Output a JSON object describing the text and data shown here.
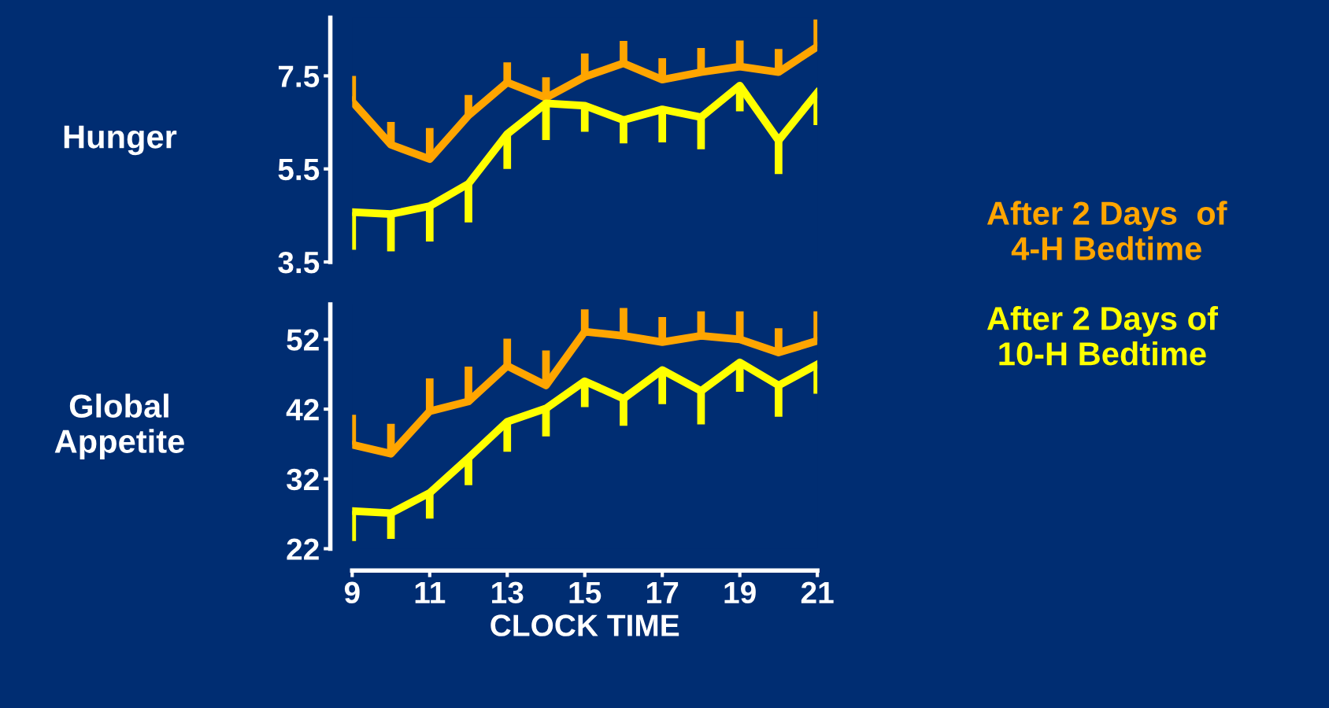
{
  "chart_data": [
    {
      "type": "line",
      "ylabel": "Hunger",
      "x": [
        9,
        10,
        11,
        12,
        13,
        14,
        15,
        16,
        17,
        18,
        19,
        20,
        21
      ],
      "xlim": [
        9,
        21
      ],
      "xticks": [
        9,
        11,
        13,
        15,
        17,
        19,
        21
      ],
      "ylim": [
        3.5,
        8.75
      ],
      "yticks": [
        3.5,
        5.5,
        7.5
      ],
      "tick_labels": "y",
      "grid": false,
      "legend": "right",
      "marker": "none",
      "line_style": "solid",
      "series": [
        {
          "name": "After 2 Days  of 4-H Bedtime",
          "color": "#ffa500",
          "values": [
            6.95,
            6.02,
            5.71,
            6.65,
            7.36,
            7.03,
            7.48,
            7.77,
            7.42,
            7.58,
            7.7,
            7.58,
            8.13
          ],
          "errors": [
            [
              6.95,
              7.5
            ],
            [
              6.02,
              6.51
            ],
            [
              5.71,
              6.38
            ],
            [
              6.65,
              7.09
            ],
            [
              7.36,
              7.79
            ],
            [
              7.03,
              7.47
            ],
            [
              7.48,
              7.98
            ],
            [
              7.77,
              8.25
            ],
            [
              7.42,
              7.88
            ],
            [
              7.58,
              8.1
            ],
            [
              7.7,
              8.26
            ],
            [
              7.58,
              8.08
            ],
            [
              8.13,
              8.71
            ]
          ]
        },
        {
          "name": "After 2 Days of 10-H Bedtime",
          "color": "#ffff00",
          "values": [
            4.57,
            4.53,
            4.7,
            5.18,
            6.25,
            6.91,
            6.86,
            6.55,
            6.78,
            6.61,
            7.29,
            6.11,
            7.14
          ],
          "errors": [
            [
              3.76,
              4.57
            ],
            [
              3.73,
              4.53
            ],
            [
              3.94,
              4.7
            ],
            [
              4.35,
              5.18
            ],
            [
              5.5,
              6.25
            ],
            [
              6.12,
              6.91
            ],
            [
              6.3,
              6.86
            ],
            [
              6.05,
              6.55
            ],
            [
              6.07,
              6.78
            ],
            [
              5.92,
              6.61
            ],
            [
              6.74,
              7.29
            ],
            [
              5.39,
              6.11
            ],
            [
              6.44,
              7.14
            ]
          ]
        }
      ]
    },
    {
      "type": "line",
      "ylabel": "Global Appetite",
      "xlabel": "CLOCK TIME",
      "x": [
        9,
        10,
        11,
        12,
        13,
        14,
        15,
        16,
        17,
        18,
        19,
        20,
        21
      ],
      "xlim": [
        9,
        21
      ],
      "xticks": [
        9,
        11,
        13,
        15,
        17,
        19,
        21
      ],
      "ylim": [
        22,
        57
      ],
      "yticks": [
        22,
        32,
        42,
        52
      ],
      "grid": false,
      "marker": "none",
      "line_style": "solid",
      "series": [
        {
          "color": "#ffa500",
          "values": [
            36.9,
            35.6,
            41.7,
            43.1,
            48.2,
            45.4,
            53.1,
            52.5,
            51.6,
            52.5,
            52.0,
            50.1,
            51.8
          ],
          "errors": [
            [
              36.9,
              41.2
            ],
            [
              35.6,
              39.9
            ],
            [
              41.7,
              46.4
            ],
            [
              43.1,
              48.1
            ],
            [
              48.2,
              52.1
            ],
            [
              45.4,
              50.4
            ],
            [
              53.1,
              56.3
            ],
            [
              52.5,
              56.5
            ],
            [
              51.6,
              55.2
            ],
            [
              52.5,
              56.0
            ],
            [
              52.0,
              56.0
            ],
            [
              50.1,
              53.6
            ],
            [
              51.8,
              56.0
            ]
          ]
        },
        {
          "color": "#ffff00",
          "values": [
            27.4,
            27.1,
            30.0,
            35.0,
            40.2,
            42.1,
            46.0,
            43.5,
            47.6,
            44.6,
            48.7,
            45.4,
            48.4
          ],
          "errors": [
            [
              23.1,
              27.4
            ],
            [
              23.4,
              27.1
            ],
            [
              26.3,
              30.0
            ],
            [
              31.1,
              35.0
            ],
            [
              35.9,
              40.2
            ],
            [
              38.1,
              42.1
            ],
            [
              42.3,
              46.0
            ],
            [
              39.6,
              43.5
            ],
            [
              42.7,
              47.6
            ],
            [
              39.8,
              44.6
            ],
            [
              44.5,
              48.7
            ],
            [
              40.9,
              45.4
            ],
            [
              44.2,
              48.4
            ]
          ]
        }
      ]
    }
  ]
}
